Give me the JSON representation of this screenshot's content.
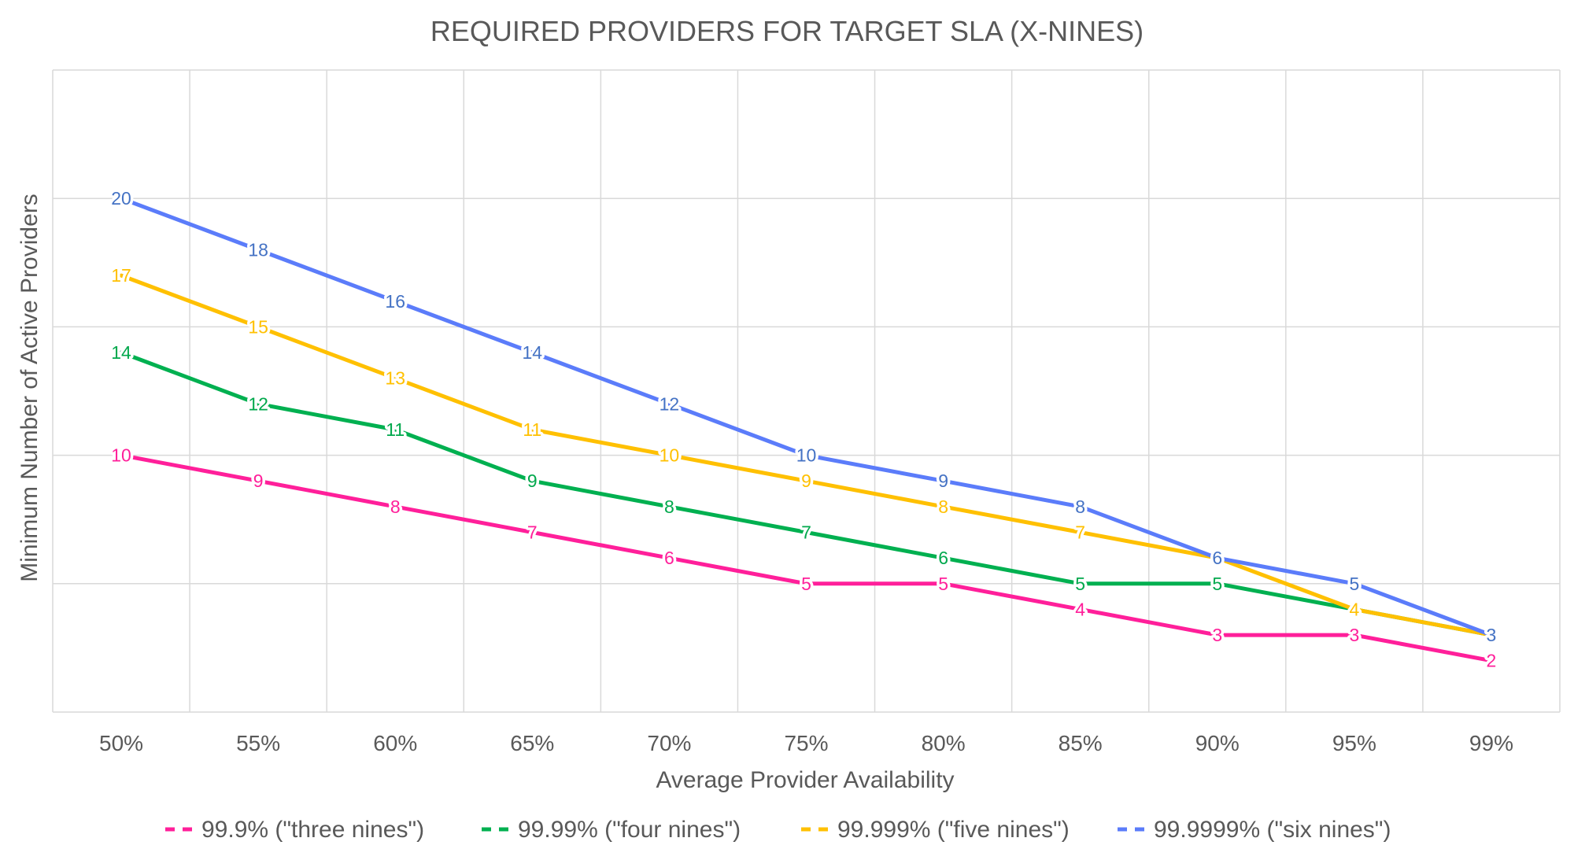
{
  "chart_data": {
    "type": "line",
    "title": "REQUIRED PROVIDERS FOR TARGET SLA (X-NINES)",
    "xlabel": "Average Provider Availability",
    "ylabel": "Minimum Number of Active Providers",
    "categories": [
      "50%",
      "55%",
      "60%",
      "65%",
      "70%",
      "75%",
      "80%",
      "85%",
      "90%",
      "95%",
      "99%"
    ],
    "ylim": [
      0,
      25
    ],
    "y_gridlines": [
      5,
      10,
      15,
      20,
      25
    ],
    "y_tick_labels_shown": false,
    "grid": true,
    "legend_position": "bottom",
    "series": [
      {
        "name": "99.9% (\"three nines\")",
        "color": "#ff1f9a",
        "label_color": "#ff1f9a",
        "values": [
          10,
          9,
          8,
          7,
          6,
          5,
          5,
          4,
          3,
          3,
          2
        ]
      },
      {
        "name": "99.99% (\"four nines\")",
        "color": "#00b050",
        "label_color": "#00a84c",
        "values": [
          14,
          12,
          11,
          9,
          8,
          7,
          6,
          5,
          5,
          4,
          3
        ]
      },
      {
        "name": "99.999% (\"five nines\")",
        "color": "#ffc000",
        "label_color": "#ffc000",
        "values": [
          17,
          15,
          13,
          11,
          10,
          9,
          8,
          7,
          6,
          4,
          3
        ]
      },
      {
        "name": "99.9999% (\"six nines\")",
        "color": "#5b7cfa",
        "label_color": "#4472c4",
        "values": [
          20,
          18,
          16,
          14,
          12,
          10,
          9,
          8,
          6,
          5,
          3
        ]
      }
    ]
  }
}
